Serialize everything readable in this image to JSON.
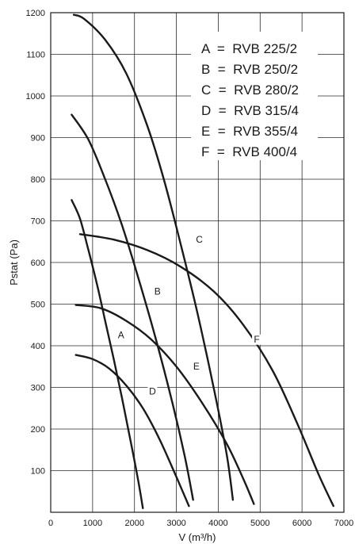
{
  "chart_data": {
    "type": "line",
    "title": "",
    "xlabel": "V (m³/h)",
    "ylabel": "Pstat (Pa)",
    "xlim": [
      0,
      7000
    ],
    "ylim": [
      0,
      1200
    ],
    "xticks": [
      0,
      1000,
      2000,
      3000,
      4000,
      5000,
      6000,
      7000
    ],
    "yticks": [
      100,
      200,
      300,
      400,
      500,
      600,
      700,
      800,
      900,
      1000,
      1100,
      1200
    ],
    "xtick_labels": [
      "0",
      "1000",
      "2000",
      "3000",
      "4000",
      "5000",
      "6000",
      "7000"
    ],
    "ytick_labels": [
      "100",
      "200",
      "300",
      "400",
      "500",
      "600",
      "700",
      "800",
      "900",
      "1000",
      "1100",
      "1200"
    ],
    "grid": true,
    "legend_position": "top-right",
    "legend": [
      "A  =  RVB 225/2",
      "B  =  RVB 250/2",
      "C  =  RVB 280/2",
      "D  =  RVB 315/4",
      "E  =  RVB 355/4",
      "F  =  RVB 400/4"
    ],
    "series": [
      {
        "name": "A",
        "x": [
          500,
          700,
          900,
          1100,
          1300,
          1500,
          1700,
          1900,
          2100,
          2200
        ],
        "y": [
          750,
          705,
          630,
          550,
          460,
          370,
          275,
          175,
          70,
          10
        ],
        "label_at": [
          1680,
          420
        ]
      },
      {
        "name": "B",
        "x": [
          500,
          900,
          1300,
          1700,
          2100,
          2500,
          2900,
          3200,
          3400
        ],
        "y": [
          955,
          895,
          800,
          690,
          560,
          420,
          265,
          135,
          30
        ],
        "label_at": [
          2550,
          525
        ]
      },
      {
        "name": "C",
        "x": [
          550,
          800,
          1300,
          1800,
          2300,
          2700,
          3100,
          3500,
          3900,
          4200,
          4350
        ],
        "y": [
          1195,
          1185,
          1135,
          1055,
          930,
          800,
          645,
          480,
          295,
          140,
          30
        ],
        "label_at": [
          3550,
          650
        ]
      },
      {
        "name": "D",
        "x": [
          600,
          1000,
          1400,
          1800,
          2200,
          2600,
          3000,
          3300
        ],
        "y": [
          378,
          368,
          345,
          305,
          250,
          175,
          85,
          15
        ],
        "label_at": [
          2430,
          285
        ]
      },
      {
        "name": "E",
        "x": [
          600,
          1200,
          1800,
          2400,
          3000,
          3600,
          4200,
          4600,
          4850
        ],
        "y": [
          498,
          490,
          460,
          415,
          350,
          265,
          165,
          80,
          20
        ],
        "label_at": [
          3480,
          345
        ]
      },
      {
        "name": "F",
        "x": [
          700,
          1500,
          2300,
          3100,
          3900,
          4600,
          5300,
          5900,
          6400,
          6750
        ],
        "y": [
          668,
          655,
          630,
          590,
          530,
          450,
          340,
          210,
          90,
          15
        ],
        "label_at": [
          4920,
          410
        ]
      }
    ]
  }
}
